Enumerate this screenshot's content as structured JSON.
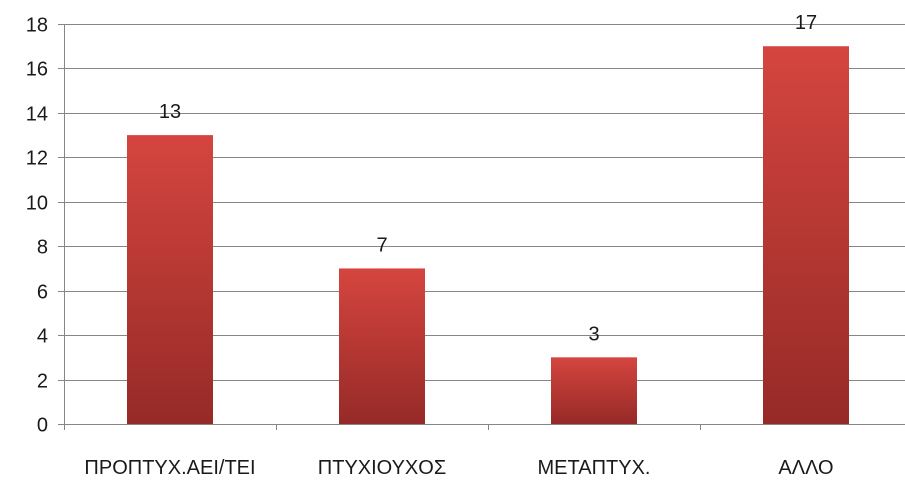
{
  "chart_data": {
    "type": "bar",
    "categories": [
      "ΠΡΟΠΤΥΧ.ΑΕΙ/ΤΕΙ",
      "ΠΤΥΧΙΟΥΧΟΣ",
      "ΜΕΤΑΠΤΥΧ.",
      "ΑΛΛΟ"
    ],
    "values": [
      13,
      7,
      3,
      17
    ],
    "data_labels": [
      "13",
      "7",
      "3",
      "17"
    ],
    "title": "",
    "xlabel": "",
    "ylabel": "",
    "ylim": [
      0,
      18
    ],
    "yticks": [
      0,
      2,
      4,
      6,
      8,
      10,
      12,
      14,
      16,
      18
    ],
    "grid": "horizontal",
    "legend": "none",
    "bar_color_top": "#d5453f",
    "bar_color_bottom": "#962a27"
  }
}
